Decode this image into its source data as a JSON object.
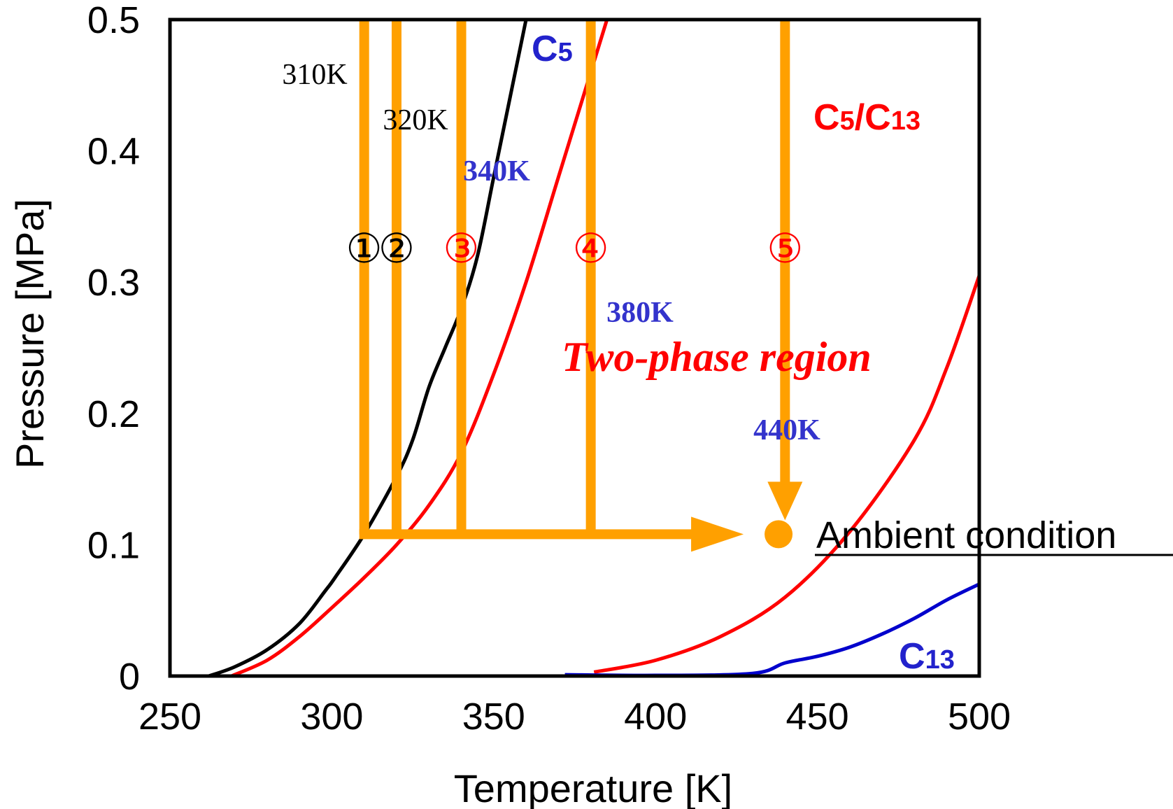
{
  "chart_data": {
    "type": "line",
    "title": "",
    "xlabel": "Temperature [K]",
    "ylabel": "Pressure [MPa]",
    "xlim": [
      250,
      500
    ],
    "ylim": [
      0,
      0.5
    ],
    "x_ticks": [
      "250",
      "300",
      "350",
      "400",
      "450",
      "500"
    ],
    "y_ticks": [
      "0",
      "0.1",
      "0.2",
      "0.3",
      "0.4",
      "0.5"
    ],
    "grid": false,
    "colors": {
      "path": "#FFA000",
      "c5": "#0000CC",
      "mixture": "#FF0000",
      "c13": "#0000CC",
      "curve_black": "#000000",
      "temp_label_blue": "#3333CC"
    },
    "series": [
      {
        "name": "C5",
        "color": "#000000",
        "points": [
          [
            262,
            0.0
          ],
          [
            270,
            0.007
          ],
          [
            280,
            0.02
          ],
          [
            290,
            0.04
          ],
          [
            298,
            0.065
          ],
          [
            301,
            0.075
          ],
          [
            310,
            0.108
          ],
          [
            320,
            0.152
          ],
          [
            325,
            0.18
          ],
          [
            330,
            0.22
          ],
          [
            335,
            0.25
          ],
          [
            340,
            0.28
          ],
          [
            345,
            0.32
          ],
          [
            350,
            0.38
          ],
          [
            355,
            0.44
          ],
          [
            360,
            0.5
          ]
        ]
      },
      {
        "name": "C5/C13",
        "color": "#FF0000",
        "points": [
          [
            269,
            0.0
          ],
          [
            280,
            0.012
          ],
          [
            290,
            0.03
          ],
          [
            300,
            0.052
          ],
          [
            310,
            0.075
          ],
          [
            320,
            0.1
          ],
          [
            330,
            0.13
          ],
          [
            340,
            0.17
          ],
          [
            350,
            0.23
          ],
          [
            360,
            0.3
          ],
          [
            370,
            0.38
          ],
          [
            380,
            0.46
          ],
          [
            385,
            0.5
          ]
        ]
      },
      {
        "name": "",
        "color": "#FF0000",
        "points": [
          [
            381,
            0.003
          ],
          [
            400,
            0.012
          ],
          [
            420,
            0.03
          ],
          [
            440,
            0.06
          ],
          [
            460,
            0.11
          ],
          [
            480,
            0.18
          ],
          [
            490,
            0.235
          ],
          [
            500,
            0.305
          ]
        ]
      },
      {
        "name": "C13",
        "color": "#0000CC",
        "points": [
          [
            372,
            0.001
          ],
          [
            400,
            0.0005
          ],
          [
            430,
            0.002
          ],
          [
            440,
            0.01
          ],
          [
            450,
            0.015
          ],
          [
            460,
            0.022
          ],
          [
            470,
            0.032
          ],
          [
            480,
            0.044
          ],
          [
            490,
            0.058
          ],
          [
            500,
            0.07
          ]
        ]
      }
    ],
    "paths": [
      {
        "label": "①",
        "temperature": 310,
        "label_text": "310K",
        "label_color": "#000000"
      },
      {
        "label": "②",
        "temperature": 320,
        "label_text": "320K",
        "label_color": "#000000"
      },
      {
        "label": "③",
        "temperature": 340,
        "label_text": "340K",
        "label_color": "#3333CC"
      },
      {
        "label": "④",
        "temperature": 380,
        "label_text": "380K",
        "label_color": "#3333CC"
      },
      {
        "label": "⑤",
        "temperature": 440,
        "label_text": "440K",
        "label_color": "#3333CC"
      }
    ],
    "ambient": {
      "temperature": 438,
      "pressure": 0.108,
      "label": "Ambient condition"
    },
    "annotations": {
      "c5_label_main": "C",
      "c5_label_sub": "5",
      "mix_label_a": "C",
      "mix_label_a_sub": "5",
      "mix_label_slash": "/C",
      "mix_label_b_sub": "13",
      "c13_label_main": "C",
      "c13_label_sub": "13",
      "two_phase": "Two-phase region"
    }
  }
}
